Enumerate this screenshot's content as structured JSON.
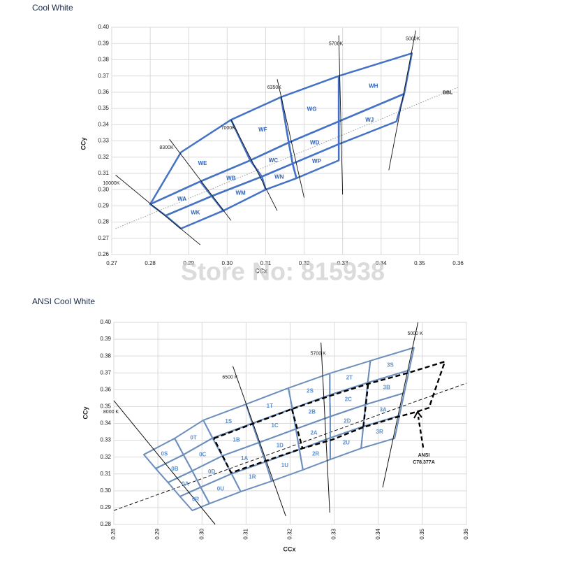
{
  "watermark": "Store No: 815938",
  "chart_data": [
    {
      "type": "polygon",
      "title": "Cool White",
      "xlabel": "CCx",
      "ylabel": "CCy",
      "xlim": [
        0.27,
        0.36
      ],
      "ylim": [
        0.26,
        0.4
      ],
      "xticks": [
        0.27,
        0.28,
        0.29,
        {
          "value": 0.3,
          "label": "0.30"
        },
        0.31,
        0.32,
        0.33,
        0.34,
        0.35,
        0.36
      ],
      "yticks": [
        0.26,
        0.27,
        0.28,
        0.29,
        {
          "value": 0.3,
          "label": "0.30"
        },
        0.31,
        0.32,
        0.33,
        0.34,
        0.35,
        0.36,
        0.37,
        0.38,
        0.39,
        {
          "value": 0.4,
          "label": "0.40"
        }
      ],
      "grid": true,
      "bin_color": "#4472c4",
      "label_color": "#2f62b8",
      "bins": [
        {
          "label": "WE",
          "x": [
            0.28,
            0.288,
            0.301,
            0.306,
            0.293
          ],
          "y": [
            0.291,
            0.323,
            0.343,
            0.318,
            0.305
          ]
        },
        {
          "label": "WF",
          "x": [
            0.301,
            0.314,
            0.316,
            0.306
          ],
          "y": [
            0.343,
            0.357,
            0.329,
            0.318
          ]
        },
        {
          "label": "WG",
          "x": [
            0.314,
            0.329,
            0.329,
            0.316
          ],
          "y": [
            0.357,
            0.37,
            0.342,
            0.329
          ]
        },
        {
          "label": "WH",
          "x": [
            0.329,
            0.348,
            0.346,
            0.329
          ],
          "y": [
            0.37,
            0.384,
            0.359,
            0.342
          ]
        },
        {
          "label": "WA",
          "x": [
            0.28,
            0.293,
            0.296,
            0.284
          ],
          "y": [
            0.291,
            0.305,
            0.296,
            0.284
          ]
        },
        {
          "label": "WB",
          "x": [
            0.293,
            0.306,
            0.309,
            0.296
          ],
          "y": [
            0.305,
            0.318,
            0.308,
            0.296
          ]
        },
        {
          "label": "WC",
          "x": [
            0.306,
            0.316,
            0.317,
            0.309
          ],
          "y": [
            0.318,
            0.329,
            0.316,
            0.308
          ]
        },
        {
          "label": "WD",
          "x": [
            0.316,
            0.329,
            0.329,
            0.317
          ],
          "y": [
            0.329,
            0.342,
            0.328,
            0.316
          ]
        },
        {
          "label": "WJ",
          "x": [
            0.329,
            0.346,
            0.344,
            0.329
          ],
          "y": [
            0.342,
            0.359,
            0.342,
            0.328
          ]
        },
        {
          "label": "WK",
          "x": [
            0.284,
            0.296,
            0.299,
            0.288
          ],
          "y": [
            0.284,
            0.296,
            0.287,
            0.276
          ]
        },
        {
          "label": "WM",
          "x": [
            0.296,
            0.309,
            0.31,
            0.299
          ],
          "y": [
            0.296,
            0.308,
            0.3,
            0.287
          ]
        },
        {
          "label": "WN",
          "x": [
            0.309,
            0.317,
            0.318,
            0.31
          ],
          "y": [
            0.308,
            0.316,
            0.307,
            0.3
          ]
        },
        {
          "label": "WP",
          "x": [
            0.317,
            0.329,
            0.329,
            0.318
          ],
          "y": [
            0.316,
            0.328,
            0.318,
            0.307
          ]
        }
      ],
      "cct_lines": [
        {
          "label": "10000K",
          "x": [
            0.271,
            0.293
          ],
          "y": [
            0.309,
            0.266
          ]
        },
        {
          "label": "8300K",
          "x": [
            0.285,
            0.301
          ],
          "y": [
            0.331,
            0.281
          ]
        },
        {
          "label": "7000K",
          "x": [
            0.301,
            0.313
          ],
          "y": [
            0.343,
            0.287
          ]
        },
        {
          "label": "6350K",
          "x": [
            0.313,
            0.32
          ],
          "y": [
            0.368,
            0.295
          ]
        },
        {
          "label": "5700K",
          "x": [
            0.329,
            0.33
          ],
          "y": [
            0.395,
            0.297
          ]
        },
        {
          "label": "5000K",
          "x": [
            0.349,
            0.342
          ],
          "y": [
            0.398,
            0.312
          ]
        }
      ],
      "reference_line": {
        "label": "BBL",
        "x": [
          0.271,
          0.36
        ],
        "y": [
          0.276,
          0.363
        ]
      }
    },
    {
      "type": "grid",
      "title": "ANSI Cool White",
      "xlabel": "CCx",
      "ylabel": "CCy",
      "xlim": [
        0.28,
        0.36
      ],
      "ylim": [
        0.28,
        0.4
      ],
      "xticks": [
        0.28,
        0.29,
        {
          "value": 0.3,
          "label": "0.30"
        },
        0.31,
        0.32,
        0.33,
        0.34,
        0.35,
        0.36
      ],
      "yticks": [
        0.28,
        0.29,
        {
          "value": 0.3,
          "label": "0.30"
        },
        0.31,
        0.32,
        0.33,
        0.34,
        0.35,
        0.36,
        0.37,
        0.38,
        0.39,
        {
          "value": 0.4,
          "label": "0.40"
        }
      ],
      "grid": true,
      "bin_color": "#6d8fbd",
      "label_color": "#5b8fd0",
      "grid_x": [
        [
          0.2868,
          0.2938,
          0.3003,
          0.31,
          0.3196,
          0.329,
          0.3382,
          0.3481
        ],
        [
          0.2895,
          0.2958,
          0.3024,
          0.3114,
          0.3205,
          0.329,
          0.3376,
          0.347
        ],
        [
          0.2923,
          0.2978,
          0.3046,
          0.3129,
          0.3213,
          0.3291,
          0.3371,
          0.3459
        ],
        [
          0.295,
          0.2997,
          0.3067,
          0.3144,
          0.3221,
          0.3291,
          0.3366,
          0.3448
        ],
        [
          0.2978,
          0.3017,
          0.3088,
          0.3158,
          0.3229,
          0.3291,
          0.3361,
          0.3437
        ]
      ],
      "grid_y": [
        [
          0.3215,
          0.3311,
          0.3419,
          0.3514,
          0.361,
          0.3697,
          0.3772,
          0.385
        ],
        [
          0.3132,
          0.3214,
          0.3313,
          0.34,
          0.3488,
          0.3569,
          0.3642,
          0.3716
        ],
        [
          0.3049,
          0.3118,
          0.3207,
          0.3286,
          0.3367,
          0.3441,
          0.3512,
          0.3581
        ],
        [
          0.2966,
          0.3021,
          0.3101,
          0.3172,
          0.3245,
          0.3314,
          0.3382,
          0.3446
        ],
        [
          0.2883,
          0.2924,
          0.2995,
          0.3057,
          0.3124,
          0.3186,
          0.3252,
          0.3311
        ]
      ],
      "bin_labels": [
        [
          "0S",
          "0T",
          "1S",
          "1T",
          "2S",
          "2T",
          "3S"
        ],
        [
          "0B",
          "0C",
          "1B",
          "1C",
          "2B",
          "2C",
          "3B"
        ],
        [
          "0A",
          "0D",
          "1A",
          "1D",
          "2A",
          "2D",
          "3A"
        ],
        [
          "0R",
          "0U",
          "1R",
          "1U",
          "2R",
          "2U",
          "3R"
        ]
      ],
      "cct_lines": [
        {
          "label": "8000 K",
          "x": [
            0.28,
            0.303
          ],
          "y": [
            0.3535,
            0.28
          ]
        },
        {
          "label": "6500 K",
          "x": [
            0.307,
            0.319
          ],
          "y": [
            0.374,
            0.285
          ]
        },
        {
          "label": "5700 K",
          "x": [
            0.327,
            0.329
          ],
          "y": [
            0.388,
            0.287
          ]
        },
        {
          "label": "5000 K",
          "x": [
            0.349,
            0.341
          ],
          "y": [
            0.4,
            0.302
          ]
        }
      ],
      "reference_line": {
        "x": [
          0.28,
          0.36
        ],
        "y": [
          0.2883,
          0.3639
        ]
      },
      "ansi_outline": {
        "x": [
          0.3027,
          0.3204,
          0.3291,
          0.3377,
          0.3469,
          0.3551,
          0.3515,
          0.3486,
          0.3439,
          0.3366,
          0.3294,
          0.3228,
          0.3066,
          0.3027
        ],
        "y": [
          0.3311,
          0.3485,
          0.3564,
          0.3635,
          0.3701,
          0.3767,
          0.3493,
          0.3468,
          0.3435,
          0.3377,
          0.3302,
          0.3252,
          0.3107,
          0.3311
        ]
      },
      "ansi_dividers": [
        {
          "x": [
            0.3204,
            0.3228
          ],
          "y": [
            0.3485,
            0.3252
          ]
        },
        {
          "x": [
            0.3377,
            0.3366
          ],
          "y": [
            0.3635,
            0.3377
          ]
        }
      ],
      "ansi_label": [
        "ANSI",
        "C78.377A"
      ]
    }
  ]
}
